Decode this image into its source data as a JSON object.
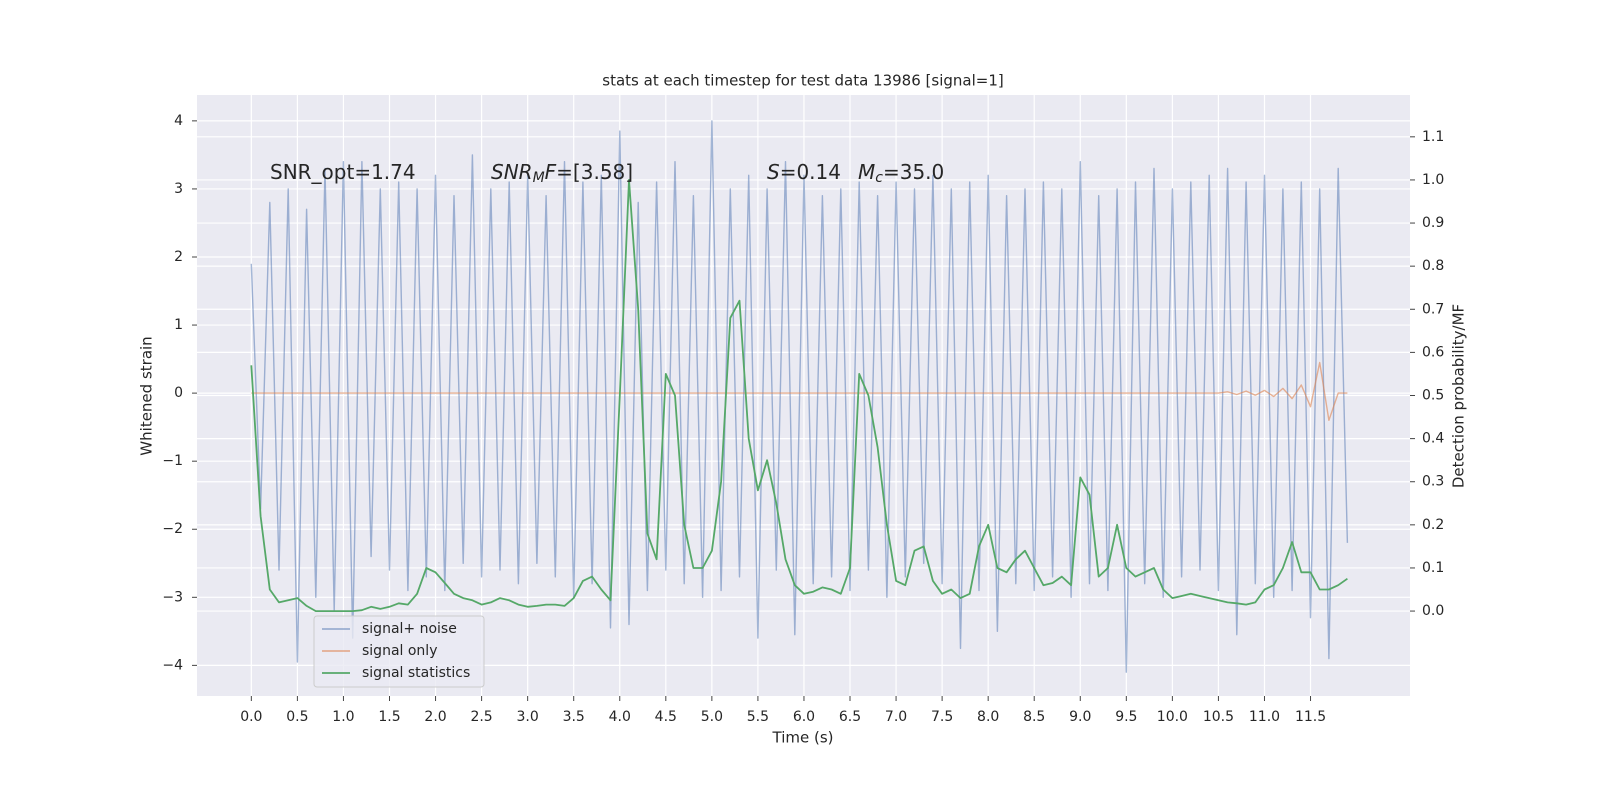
{
  "chart_data": {
    "type": "line",
    "title": "stats at each timestep for test data 13986 [signal=1]",
    "xlabel": "Time (s)",
    "ylabel": "Whitened strain",
    "y2label": "Detection probability/MF",
    "annotations": [
      [
        {
          "text": "SNR_opt=1.74",
          "style": "normal"
        }
      ],
      [
        {
          "text": "SNR",
          "style": "italic"
        },
        {
          "text": "M",
          "style": "sub"
        },
        {
          "text": "F",
          "style": "italic"
        },
        {
          "text": "=[3.58]",
          "style": "normal"
        }
      ],
      [
        {
          "text": "S",
          "style": "italic"
        },
        {
          "text": "=0.14",
          "style": "normal"
        }
      ],
      [
        {
          "text": "M",
          "style": "italic"
        },
        {
          "text": "c",
          "style": "sub"
        },
        {
          "text": "=35.0",
          "style": "normal"
        }
      ]
    ],
    "x": [
      0.0,
      0.1,
      0.2,
      0.3,
      0.4,
      0.5,
      0.6,
      0.7,
      0.8,
      0.9,
      1.0,
      1.1,
      1.2,
      1.3,
      1.4,
      1.5,
      1.6,
      1.7,
      1.8,
      1.9,
      2.0,
      2.1,
      2.2,
      2.3,
      2.4,
      2.5,
      2.6,
      2.7,
      2.8,
      2.9,
      3.0,
      3.1,
      3.2,
      3.3,
      3.4,
      3.5,
      3.6,
      3.7,
      3.8,
      3.9,
      4.0,
      4.1,
      4.2,
      4.3,
      4.4,
      4.5,
      4.6,
      4.7,
      4.8,
      4.9,
      5.0,
      5.1,
      5.2,
      5.3,
      5.4,
      5.5,
      5.6,
      5.7,
      5.8,
      5.9,
      6.0,
      6.1,
      6.2,
      6.3,
      6.4,
      6.5,
      6.6,
      6.7,
      6.8,
      6.9,
      7.0,
      7.1,
      7.2,
      7.3,
      7.4,
      7.5,
      7.6,
      7.7,
      7.8,
      7.9,
      8.0,
      8.1,
      8.2,
      8.3,
      8.4,
      8.5,
      8.6,
      8.7,
      8.8,
      8.9,
      9.0,
      9.1,
      9.2,
      9.3,
      9.4,
      9.5,
      9.6,
      9.7,
      9.8,
      9.9,
      10.0,
      10.1,
      10.2,
      10.3,
      10.4,
      10.5,
      10.6,
      10.7,
      10.8,
      10.9,
      11.0,
      11.1,
      11.2,
      11.3,
      11.4,
      11.5,
      11.6,
      11.7,
      11.8,
      11.9
    ],
    "series": [
      {
        "name": "signal+ noise",
        "color": "#4c72b0",
        "alpha": 0.5,
        "axis": "y",
        "values": [
          1.9,
          -1.7,
          2.8,
          -2.6,
          3.0,
          -3.95,
          2.7,
          -3.0,
          3.3,
          -3.2,
          3.4,
          -3.6,
          3.4,
          -2.4,
          3.0,
          -2.6,
          3.1,
          -2.9,
          3.0,
          -2.7,
          3.2,
          -2.9,
          2.9,
          -2.5,
          3.5,
          -2.7,
          3.0,
          -2.6,
          3.1,
          -2.8,
          3.2,
          -2.5,
          2.9,
          -2.7,
          3.4,
          -3.0,
          3.1,
          -2.8,
          3.2,
          -3.45,
          3.85,
          -3.4,
          2.8,
          -2.9,
          3.1,
          -2.6,
          3.4,
          -2.8,
          2.9,
          -3.0,
          4.0,
          -2.9,
          3.0,
          -2.7,
          3.2,
          -3.6,
          3.0,
          -2.6,
          3.4,
          -3.55,
          3.2,
          -2.8,
          2.9,
          -2.7,
          3.0,
          -2.9,
          3.1,
          -2.6,
          2.9,
          -3.0,
          3.1,
          -2.7,
          3.0,
          -2.5,
          3.2,
          -2.8,
          3.0,
          -3.75,
          3.1,
          -2.9,
          3.2,
          -3.5,
          2.9,
          -2.8,
          3.0,
          -2.9,
          3.1,
          -2.7,
          3.0,
          -3.0,
          3.4,
          -2.8,
          2.9,
          -2.9,
          3.0,
          -4.1,
          3.1,
          -2.8,
          3.3,
          -3.0,
          3.0,
          -2.7,
          3.1,
          -2.6,
          3.2,
          -2.9,
          3.3,
          -3.55,
          3.1,
          -2.8,
          3.2,
          -3.0,
          3.0,
          -2.9,
          3.1,
          -3.3,
          3.0,
          -3.9,
          3.3,
          -2.2
        ]
      },
      {
        "name": "signal only",
        "color": "#dd8452",
        "alpha": 0.6,
        "axis": "y",
        "values": [
          0,
          0,
          0,
          0,
          0,
          0,
          0,
          0,
          0,
          0,
          0,
          0,
          0,
          0,
          0,
          0,
          0,
          0,
          0,
          0,
          0,
          0,
          0,
          0,
          0,
          0,
          0,
          0,
          0,
          0,
          0,
          0,
          0,
          0,
          0,
          0,
          0,
          0,
          0,
          0,
          0,
          0,
          0,
          0,
          0,
          0,
          0,
          0,
          0,
          0,
          0,
          0,
          0,
          0,
          0,
          0,
          0,
          0,
          0,
          0,
          0,
          0,
          0,
          0,
          0,
          0,
          0,
          0,
          0,
          0,
          0,
          0,
          0,
          0,
          0,
          0,
          0,
          0,
          0,
          0,
          0,
          0,
          0,
          0,
          0,
          0,
          0,
          0,
          0,
          0,
          0,
          0,
          0,
          0,
          0,
          0,
          0,
          0,
          0,
          0,
          0,
          0,
          0,
          0,
          0,
          0,
          0.02,
          -0.02,
          0.03,
          -0.03,
          0.04,
          -0.05,
          0.07,
          -0.08,
          0.12,
          -0.2,
          0.45,
          -0.4,
          0,
          0
        ]
      },
      {
        "name": "signal statistics",
        "color": "#55a868",
        "alpha": 1,
        "axis": "y2",
        "values": [
          0.57,
          0.22,
          0.05,
          0.02,
          0.025,
          0.03,
          0.012,
          0.0,
          0.0,
          0.0,
          0.0,
          0.0,
          0.002,
          0.01,
          0.005,
          0.01,
          0.018,
          0.015,
          0.04,
          0.1,
          0.09,
          0.065,
          0.04,
          0.03,
          0.025,
          0.015,
          0.02,
          0.03,
          0.025,
          0.015,
          0.01,
          0.012,
          0.015,
          0.015,
          0.012,
          0.03,
          0.07,
          0.08,
          0.05,
          0.025,
          0.5,
          1.0,
          0.7,
          0.18,
          0.12,
          0.55,
          0.5,
          0.2,
          0.1,
          0.1,
          0.14,
          0.3,
          0.68,
          0.72,
          0.4,
          0.28,
          0.35,
          0.25,
          0.12,
          0.06,
          0.04,
          0.045,
          0.055,
          0.05,
          0.04,
          0.1,
          0.55,
          0.5,
          0.38,
          0.2,
          0.07,
          0.06,
          0.14,
          0.15,
          0.07,
          0.04,
          0.05,
          0.03,
          0.04,
          0.15,
          0.2,
          0.1,
          0.09,
          0.12,
          0.14,
          0.1,
          0.06,
          0.065,
          0.08,
          0.06,
          0.31,
          0.27,
          0.08,
          0.1,
          0.2,
          0.1,
          0.08,
          0.09,
          0.1,
          0.05,
          0.03,
          0.035,
          0.04,
          0.035,
          0.03,
          0.025,
          0.02,
          0.018,
          0.015,
          0.02,
          0.05,
          0.06,
          0.1,
          0.16,
          0.09,
          0.09,
          0.05,
          0.05,
          0.06,
          0.075
        ]
      }
    ],
    "xlim": [
      -0.59,
      12.58
    ],
    "ylim": [
      -4.45,
      4.38
    ],
    "y2lim": [
      -0.197,
      1.197
    ],
    "xticks": [
      {
        "value": 0,
        "label": "0.0"
      },
      {
        "value": 0.5,
        "label": "0.5"
      },
      {
        "value": 1,
        "label": "1.0"
      },
      {
        "value": 1.5,
        "label": "1.5"
      },
      {
        "value": 2,
        "label": "2.0"
      },
      {
        "value": 2.5,
        "label": "2.5"
      },
      {
        "value": 3,
        "label": "3.0"
      },
      {
        "value": 3.5,
        "label": "3.5"
      },
      {
        "value": 4,
        "label": "4.0"
      },
      {
        "value": 4.5,
        "label": "4.5"
      },
      {
        "value": 5,
        "label": "5.0"
      },
      {
        "value": 5.5,
        "label": "5.5"
      },
      {
        "value": 6,
        "label": "6.0"
      },
      {
        "value": 6.5,
        "label": "6.5"
      },
      {
        "value": 7,
        "label": "7.0"
      },
      {
        "value": 7.5,
        "label": "7.5"
      },
      {
        "value": 8,
        "label": "8.0"
      },
      {
        "value": 8.5,
        "label": "8.5"
      },
      {
        "value": 9,
        "label": "9.0"
      },
      {
        "value": 9.5,
        "label": "9.5"
      },
      {
        "value": 10,
        "label": "10.0"
      },
      {
        "value": 10.5,
        "label": "10.5"
      },
      {
        "value": 11,
        "label": "11.0"
      },
      {
        "value": 11.5,
        "label": "11.5"
      }
    ],
    "yticks": [
      {
        "value": -4,
        "label": "−4"
      },
      {
        "value": -3,
        "label": "−3"
      },
      {
        "value": -2,
        "label": "−2"
      },
      {
        "value": -1,
        "label": "−1"
      },
      0,
      1,
      2,
      3,
      4
    ],
    "y2ticks": [
      {
        "value": 0,
        "label": "0.0"
      },
      {
        "value": 0.1,
        "label": "0.1"
      },
      {
        "value": 0.2,
        "label": "0.2"
      },
      {
        "value": 0.3,
        "label": "0.3"
      },
      {
        "value": 0.4,
        "label": "0.4"
      },
      {
        "value": 0.5,
        "label": "0.5"
      },
      {
        "value": 0.6,
        "label": "0.6"
      },
      {
        "value": 0.7,
        "label": "0.7"
      },
      {
        "value": 0.8,
        "label": "0.8"
      },
      {
        "value": 0.9,
        "label": "0.9"
      },
      {
        "value": 1,
        "label": "1.0"
      },
      {
        "value": 1.1,
        "label": "1.1"
      }
    ],
    "grid": true,
    "legend": "lower left"
  }
}
